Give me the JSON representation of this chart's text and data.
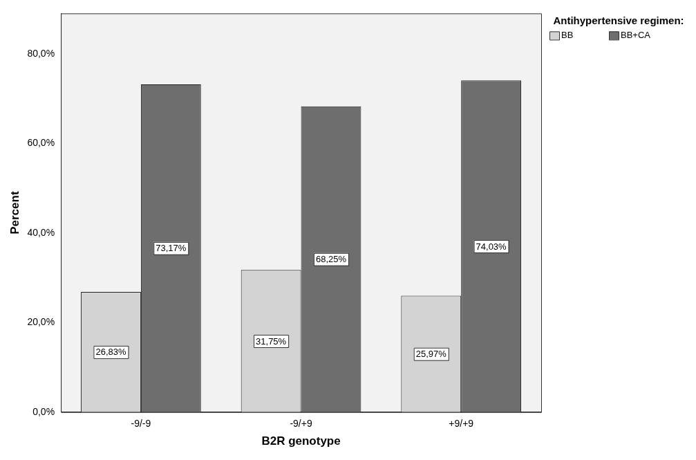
{
  "chart_data": {
    "type": "bar",
    "categories": [
      "-9/-9",
      "-9/+9",
      "+9/+9"
    ],
    "series": [
      {
        "name": "BB",
        "color": "#d3d3d3",
        "values": [
          26.83,
          31.75,
          25.97
        ],
        "value_labels": [
          "26,83%",
          "31,75%",
          "25,97%"
        ]
      },
      {
        "name": "BB+CA",
        "color": "#6e6e6e",
        "values": [
          73.17,
          68.25,
          74.03
        ],
        "value_labels": [
          "73,17%",
          "68,25%",
          "74,03%"
        ]
      }
    ],
    "xlabel": "B2R genotype",
    "ylabel": "Percent",
    "legend_title": "Antihypertensive regimen:",
    "legend": "top right",
    "ylim": [
      0,
      89
    ],
    "yticks": [
      {
        "value": 0,
        "label": "0,0%"
      },
      {
        "value": 20,
        "label": "20,0%"
      },
      {
        "value": 40,
        "label": "40,0%"
      },
      {
        "value": 60,
        "label": "60,0%"
      },
      {
        "value": 80,
        "label": "80,0%"
      }
    ],
    "grid": false
  }
}
